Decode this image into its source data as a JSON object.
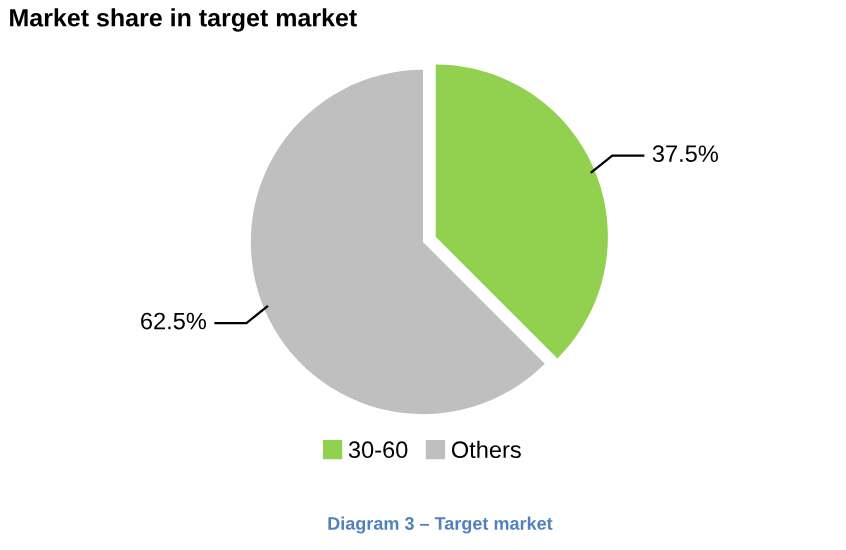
{
  "chart_data": {
    "type": "pie",
    "title": "Market share in target market",
    "categories": [
      "30-60",
      "Others"
    ],
    "values": [
      37.5,
      62.5
    ],
    "colors": [
      "#92d050",
      "#bfbfbf"
    ],
    "value_labels": [
      "37.5%",
      "62.5%"
    ],
    "legend": "bottom",
    "annotations": [
      "Diagram 3 – Target market"
    ]
  }
}
